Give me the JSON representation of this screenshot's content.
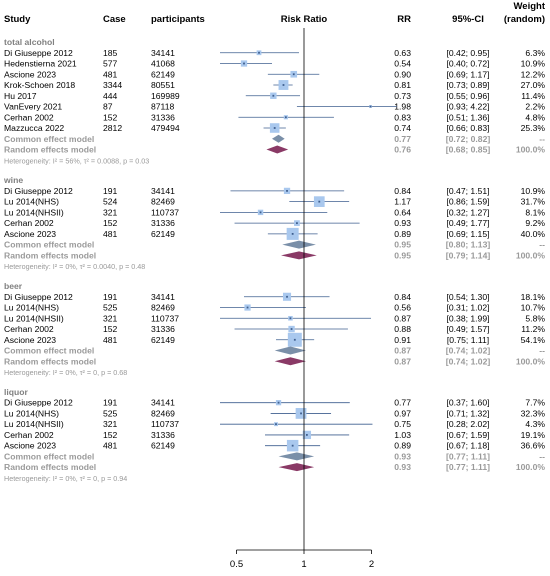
{
  "chart_data": {
    "type": "forest",
    "columns": {
      "study": "Study",
      "cases": "Case",
      "participants": "participants",
      "plot": "Risk Ratio",
      "rr": "RR",
      "ci": "95%-CI",
      "weight": "Weight",
      "weight_sub": "(random)"
    },
    "x_axis": {
      "scale": "log",
      "ticks": [
        "0.5",
        "1",
        "2"
      ],
      "reference": 1
    },
    "common_label": "Common effect model",
    "random_label": "Random effects model",
    "groups": [
      {
        "name": "total alcohol",
        "studies": [
          {
            "study": "Di Giuseppe 2012",
            "cases": "185",
            "participants": "34141",
            "rr": 0.63,
            "lo": 0.42,
            "hi": 0.95,
            "rr_text": "0.63",
            "ci_text": "[0.42; 0.95]",
            "weight": "6.3%"
          },
          {
            "study": "Hedenstierna 2021",
            "cases": "577",
            "participants": "41068",
            "rr": 0.54,
            "lo": 0.4,
            "hi": 0.72,
            "rr_text": "0.54",
            "ci_text": "[0.40; 0.72]",
            "weight": "10.9%"
          },
          {
            "study": "Ascione 2023",
            "cases": "481",
            "participants": "62149",
            "rr": 0.9,
            "lo": 0.69,
            "hi": 1.17,
            "rr_text": "0.90",
            "ci_text": "[0.69; 1.17]",
            "weight": "12.2%"
          },
          {
            "study": "Krok-Schoen 2018",
            "cases": "3344",
            "participants": "80551",
            "rr": 0.81,
            "lo": 0.73,
            "hi": 0.89,
            "rr_text": "0.81",
            "ci_text": "[0.73; 0.89]",
            "weight": "27.0%"
          },
          {
            "study": "Hu 2017",
            "cases": "444",
            "participants": "169989",
            "rr": 0.73,
            "lo": 0.55,
            "hi": 0.96,
            "rr_text": "0.73",
            "ci_text": "[0.55; 0.96]",
            "weight": "11.4%"
          },
          {
            "study": "VanEvery 2021",
            "cases": "87",
            "participants": "87118",
            "rr": 1.98,
            "lo": 0.93,
            "hi": 4.22,
            "rr_text": "1.98",
            "ci_text": "[0.93; 4.22]",
            "weight": "2.2%"
          },
          {
            "study": "Cerhan 2002",
            "cases": "152",
            "participants": "31336",
            "rr": 0.83,
            "lo": 0.51,
            "hi": 1.36,
            "rr_text": "0.83",
            "ci_text": "[0.51; 1.36]",
            "weight": "4.8%"
          },
          {
            "study": "Mazzucca 2022",
            "cases": "2812",
            "participants": "479494",
            "rr": 0.74,
            "lo": 0.66,
            "hi": 0.83,
            "rr_text": "0.74",
            "ci_text": "[0.66; 0.83]",
            "weight": "25.3%"
          }
        ],
        "common": {
          "rr": 0.77,
          "lo": 0.72,
          "hi": 0.82,
          "rr_text": "0.77",
          "ci_text": "[0.72; 0.82]",
          "weight": "--"
        },
        "random": {
          "rr": 0.76,
          "lo": 0.68,
          "hi": 0.85,
          "rr_text": "0.76",
          "ci_text": "[0.68; 0.85]",
          "weight": "100.0%"
        },
        "heterogeneity": "Heterogeneity: I² = 56%, τ² = 0.0088, p = 0.03"
      },
      {
        "name": "wine",
        "studies": [
          {
            "study": "Di Giuseppe 2012",
            "cases": "191",
            "participants": "34141",
            "rr": 0.84,
            "lo": 0.47,
            "hi": 1.51,
            "rr_text": "0.84",
            "ci_text": "[0.47; 1.51]",
            "weight": "10.9%"
          },
          {
            "study": "Lu 2014(NHS)",
            "cases": "524",
            "participants": "82469",
            "rr": 1.17,
            "lo": 0.86,
            "hi": 1.59,
            "rr_text": "1.17",
            "ci_text": "[0.86; 1.59]",
            "weight": "31.7%"
          },
          {
            "study": "Lu 2014(NHSII)",
            "cases": "321",
            "participants": "110737",
            "rr": 0.64,
            "lo": 0.32,
            "hi": 1.27,
            "rr_text": "0.64",
            "ci_text": "[0.32; 1.27]",
            "weight": "8.1%"
          },
          {
            "study": "Cerhan 2002",
            "cases": "152",
            "participants": "31336",
            "rr": 0.93,
            "lo": 0.49,
            "hi": 1.77,
            "rr_text": "0.93",
            "ci_text": "[0.49; 1.77]",
            "weight": "9.2%"
          },
          {
            "study": "Ascione 2023",
            "cases": "481",
            "participants": "62149",
            "rr": 0.89,
            "lo": 0.69,
            "hi": 1.15,
            "rr_text": "0.89",
            "ci_text": "[0.69; 1.15]",
            "weight": "40.0%"
          }
        ],
        "common": {
          "rr": 0.95,
          "lo": 0.8,
          "hi": 1.13,
          "rr_text": "0.95",
          "ci_text": "[0.80; 1.13]",
          "weight": "--"
        },
        "random": {
          "rr": 0.95,
          "lo": 0.79,
          "hi": 1.14,
          "rr_text": "0.95",
          "ci_text": "[0.79; 1.14]",
          "weight": "100.0%"
        },
        "heterogeneity": "Heterogeneity: I² = 0%, τ² = 0.0040, p = 0.48"
      },
      {
        "name": "beer",
        "studies": [
          {
            "study": "Di Giuseppe 2012",
            "cases": "191",
            "participants": "34141",
            "rr": 0.84,
            "lo": 0.54,
            "hi": 1.3,
            "rr_text": "0.84",
            "ci_text": "[0.54; 1.30]",
            "weight": "18.1%"
          },
          {
            "study": "Lu 2014(NHS)",
            "cases": "525",
            "participants": "82469",
            "rr": 0.56,
            "lo": 0.31,
            "hi": 1.02,
            "rr_text": "0.56",
            "ci_text": "[0.31; 1.02]",
            "weight": "10.7%"
          },
          {
            "study": "Lu 2014(NHSII)",
            "cases": "321",
            "participants": "110737",
            "rr": 0.87,
            "lo": 0.38,
            "hi": 1.99,
            "rr_text": "0.87",
            "ci_text": "[0.38; 1.99]",
            "weight": "5.8%"
          },
          {
            "study": "Cerhan 2002",
            "cases": "152",
            "participants": "31336",
            "rr": 0.88,
            "lo": 0.49,
            "hi": 1.57,
            "rr_text": "0.88",
            "ci_text": "[0.49; 1.57]",
            "weight": "11.2%"
          },
          {
            "study": "Ascione 2023",
            "cases": "481",
            "participants": "62149",
            "rr": 0.91,
            "lo": 0.75,
            "hi": 1.11,
            "rr_text": "0.91",
            "ci_text": "[0.75; 1.11]",
            "weight": "54.1%"
          }
        ],
        "common": {
          "rr": 0.87,
          "lo": 0.74,
          "hi": 1.02,
          "rr_text": "0.87",
          "ci_text": "[0.74; 1.02]",
          "weight": "--"
        },
        "random": {
          "rr": 0.87,
          "lo": 0.74,
          "hi": 1.02,
          "rr_text": "0.87",
          "ci_text": "[0.74; 1.02]",
          "weight": "100.0%"
        },
        "heterogeneity": "Heterogeneity: I² = 0%, τ² = 0, p = 0.68"
      },
      {
        "name": "liquor",
        "studies": [
          {
            "study": "Di Giuseppe 2012",
            "cases": "191",
            "participants": "34141",
            "rr": 0.77,
            "lo": 0.37,
            "hi": 1.6,
            "rr_text": "0.77",
            "ci_text": "[0.37; 1.60]",
            "weight": "7.7%"
          },
          {
            "study": "Lu 2014(NHS)",
            "cases": "525",
            "participants": "82469",
            "rr": 0.97,
            "lo": 0.71,
            "hi": 1.32,
            "rr_text": "0.97",
            "ci_text": "[0.71; 1.32]",
            "weight": "32.3%"
          },
          {
            "study": "Lu 2014(NHSII)",
            "cases": "321",
            "participants": "110737",
            "rr": 0.75,
            "lo": 0.28,
            "hi": 2.02,
            "rr_text": "0.75",
            "ci_text": "[0.28; 2.02]",
            "weight": "4.3%"
          },
          {
            "study": "Cerhan 2002",
            "cases": "152",
            "participants": "31336",
            "rr": 1.03,
            "lo": 0.67,
            "hi": 1.59,
            "rr_text": "1.03",
            "ci_text": "[0.67; 1.59]",
            "weight": "19.1%"
          },
          {
            "study": "Ascione 2023",
            "cases": "481",
            "participants": "62149",
            "rr": 0.89,
            "lo": 0.67,
            "hi": 1.18,
            "rr_text": "0.89",
            "ci_text": "[0.67; 1.18]",
            "weight": "36.6%"
          }
        ],
        "common": {
          "rr": 0.93,
          "lo": 0.77,
          "hi": 1.11,
          "rr_text": "0.93",
          "ci_text": "[0.77; 1.11]",
          "weight": "--"
        },
        "random": {
          "rr": 0.93,
          "lo": 0.77,
          "hi": 1.11,
          "rr_text": "0.93",
          "ci_text": "[0.77; 1.11]",
          "weight": "100.0%"
        },
        "heterogeneity": "Heterogeneity: I² = 0%, τ² = 0, p = 0.94"
      }
    ]
  },
  "colors": {
    "text": "#000000",
    "model_text": "#9a9a9a",
    "group_label": "#808080",
    "square": "#a9c8ee",
    "ci_line": "#3f5f8f",
    "common_diamond": "#7a8fa8",
    "random_diamond": "#8a3a66",
    "reference_line": "#000000"
  }
}
